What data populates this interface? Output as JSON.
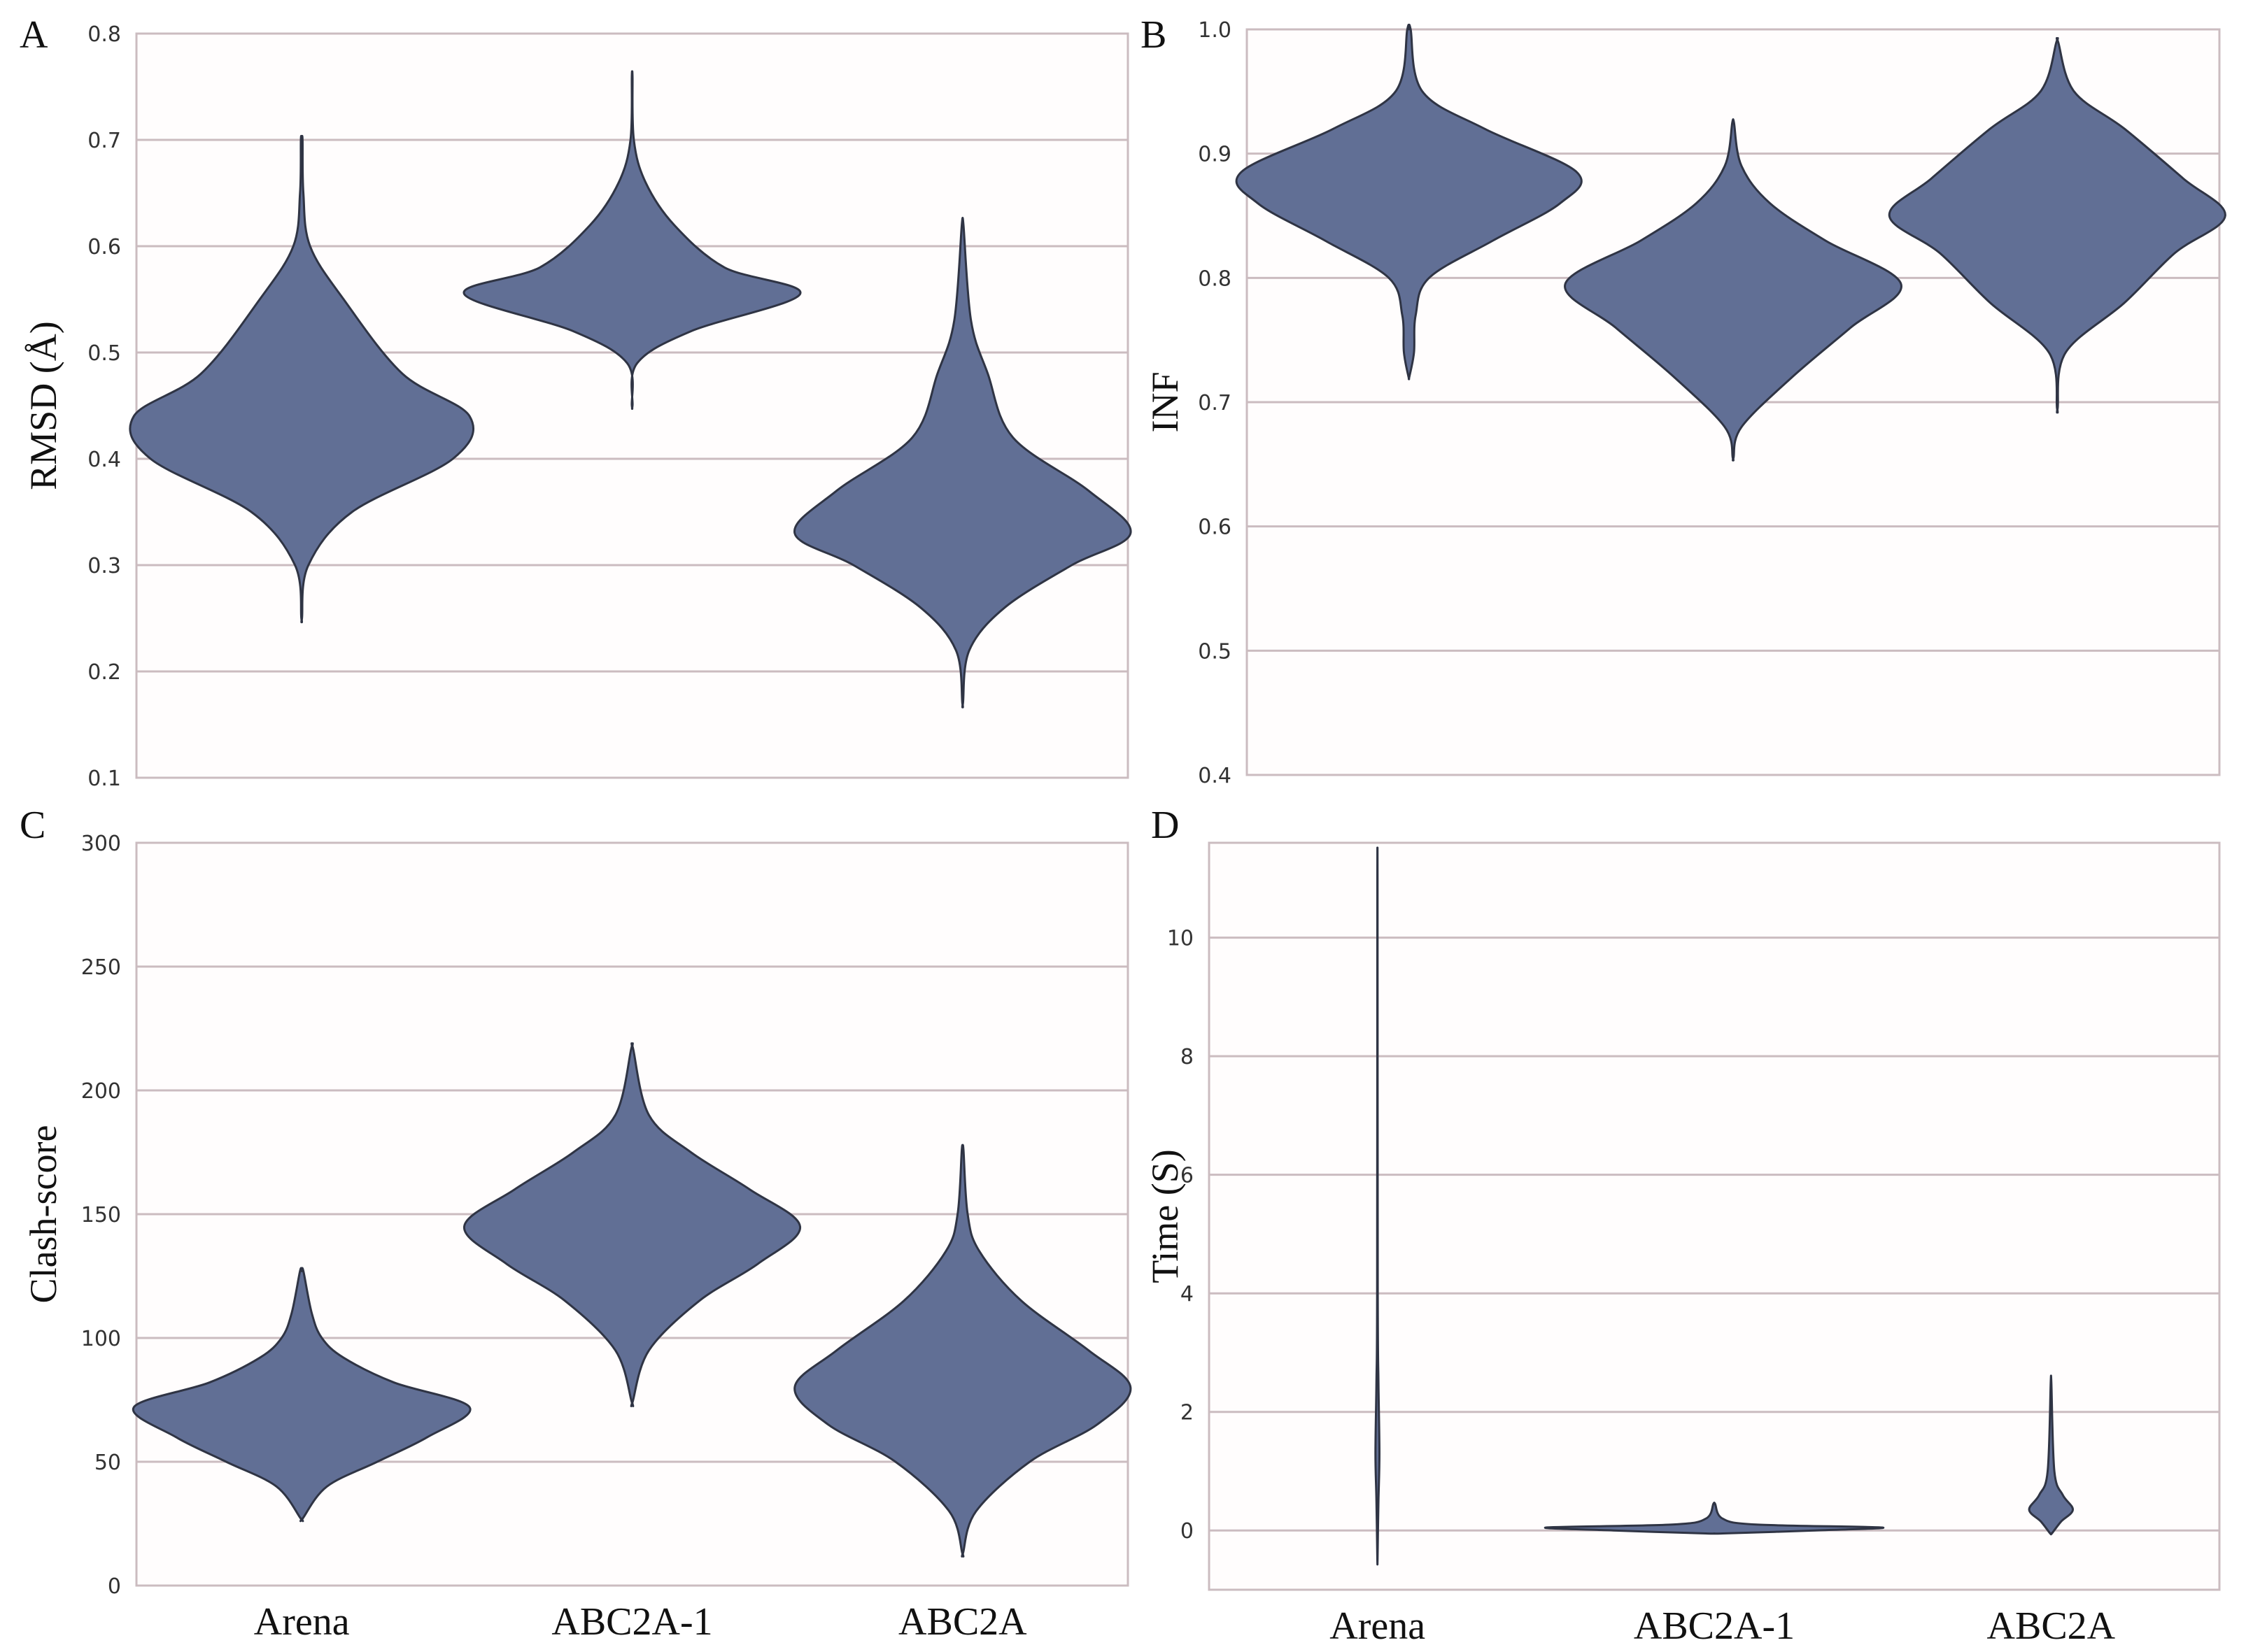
{
  "figure": {
    "violin_color": "#616f95",
    "violin_edge_color": "#2f3444",
    "grid_color": "#cbbcc0"
  },
  "chart_data": [
    {
      "type": "violin",
      "panel": "A",
      "title": "",
      "ylabel": "RMSD (Å)",
      "xlabel": "",
      "categories": [],
      "yticks": [
        "0.1",
        "0.2",
        "0.3",
        "0.4",
        "0.5",
        "0.6",
        "0.7",
        "0.8"
      ],
      "ylim": [
        0.1,
        0.8
      ],
      "grid": "horizontal",
      "series": [
        {
          "category": "Arena",
          "min": 0.25,
          "max": 0.7,
          "profile": [
            [
              0.25,
              0.002
            ],
            [
              0.3,
              0.04
            ],
            [
              0.35,
              0.3
            ],
            [
              0.4,
              0.9
            ],
            [
              0.44,
              1.0
            ],
            [
              0.48,
              0.6
            ],
            [
              0.55,
              0.25
            ],
            [
              0.6,
              0.05
            ],
            [
              0.65,
              0.01
            ],
            [
              0.7,
              0.005
            ]
          ]
        },
        {
          "category": "ABC2A-1",
          "min": 0.45,
          "max": 0.76,
          "profile": [
            [
              0.45,
              0.002
            ],
            [
              0.49,
              0.03
            ],
            [
              0.52,
              0.35
            ],
            [
              0.555,
              1.0
            ],
            [
              0.58,
              0.55
            ],
            [
              0.62,
              0.25
            ],
            [
              0.66,
              0.08
            ],
            [
              0.7,
              0.01
            ],
            [
              0.76,
              0.002
            ]
          ]
        },
        {
          "category": "ABC2A",
          "min": 0.17,
          "max": 0.62,
          "profile": [
            [
              0.17,
              0.002
            ],
            [
              0.22,
              0.04
            ],
            [
              0.26,
              0.25
            ],
            [
              0.3,
              0.65
            ],
            [
              0.33,
              1.0
            ],
            [
              0.37,
              0.75
            ],
            [
              0.42,
              0.3
            ],
            [
              0.48,
              0.15
            ],
            [
              0.53,
              0.05
            ],
            [
              0.62,
              0.005
            ]
          ]
        }
      ]
    },
    {
      "type": "violin",
      "panel": "B",
      "title": "",
      "ylabel": "INF",
      "xlabel": "",
      "categories": [],
      "yticks": [
        "0.4",
        "0.5",
        "0.6",
        "0.7",
        "0.8",
        "0.9",
        "1.0"
      ],
      "ylim": [
        0.4,
        1.0
      ],
      "grid": "horizontal",
      "series": [
        {
          "category": "Arena",
          "min": 0.72,
          "max": 1.0,
          "profile": [
            [
              0.72,
              0.002
            ],
            [
              0.74,
              0.03
            ],
            [
              0.77,
              0.04
            ],
            [
              0.8,
              0.12
            ],
            [
              0.83,
              0.5
            ],
            [
              0.86,
              0.9
            ],
            [
              0.885,
              1.0
            ],
            [
              0.92,
              0.45
            ],
            [
              0.95,
              0.08
            ],
            [
              1.0,
              0.01
            ]
          ]
        },
        {
          "category": "ABC2A-1",
          "min": 0.655,
          "max": 0.925,
          "profile": [
            [
              0.655,
              0.002
            ],
            [
              0.68,
              0.05
            ],
            [
              0.72,
              0.35
            ],
            [
              0.76,
              0.7
            ],
            [
              0.795,
              1.0
            ],
            [
              0.83,
              0.55
            ],
            [
              0.86,
              0.22
            ],
            [
              0.89,
              0.05
            ],
            [
              0.925,
              0.005
            ]
          ]
        },
        {
          "category": "ABC2A",
          "min": 0.695,
          "max": 0.99,
          "profile": [
            [
              0.695,
              0.002
            ],
            [
              0.74,
              0.05
            ],
            [
              0.78,
              0.4
            ],
            [
              0.82,
              0.7
            ],
            [
              0.85,
              1.0
            ],
            [
              0.88,
              0.75
            ],
            [
              0.92,
              0.4
            ],
            [
              0.95,
              0.1
            ],
            [
              0.99,
              0.005
            ]
          ]
        }
      ]
    },
    {
      "type": "violin",
      "panel": "C",
      "title": "",
      "ylabel": "Clash-score",
      "xlabel": "",
      "categories": [
        "Arena",
        "ABC2A-1",
        "ABC2A"
      ],
      "yticks": [
        "0",
        "50",
        "100",
        "150",
        "200",
        "250",
        "300"
      ],
      "ylim": [
        0,
        300
      ],
      "grid": "horizontal",
      "series": [
        {
          "category": "Arena",
          "min": 27,
          "max": 127,
          "profile": [
            [
              27,
              0.005
            ],
            [
              40,
              0.15
            ],
            [
              50,
              0.45
            ],
            [
              60,
              0.75
            ],
            [
              72,
              1.0
            ],
            [
              82,
              0.55
            ],
            [
              92,
              0.25
            ],
            [
              100,
              0.12
            ],
            [
              110,
              0.06
            ],
            [
              127,
              0.01
            ]
          ]
        },
        {
          "category": "ABC2A-1",
          "min": 74,
          "max": 217,
          "profile": [
            [
              74,
              0.002
            ],
            [
              95,
              0.1
            ],
            [
              115,
              0.4
            ],
            [
              130,
              0.75
            ],
            [
              145,
              1.0
            ],
            [
              160,
              0.7
            ],
            [
              175,
              0.35
            ],
            [
              190,
              0.1
            ],
            [
              217,
              0.005
            ]
          ]
        },
        {
          "category": "ABC2A",
          "min": 13,
          "max": 176,
          "profile": [
            [
              13,
              0.002
            ],
            [
              30,
              0.08
            ],
            [
              50,
              0.4
            ],
            [
              65,
              0.8
            ],
            [
              80,
              1.0
            ],
            [
              95,
              0.75
            ],
            [
              115,
              0.35
            ],
            [
              135,
              0.1
            ],
            [
              150,
              0.03
            ],
            [
              176,
              0.005
            ]
          ]
        }
      ]
    },
    {
      "type": "violin",
      "panel": "D",
      "title": "",
      "ylabel": "Time (S)",
      "xlabel": "",
      "categories": [
        "Arena",
        "ABC2A-1",
        "ABC2A"
      ],
      "yticks": [
        "0",
        "2",
        "4",
        "6",
        "8",
        "10"
      ],
      "ylim": [
        -1.0,
        11.6
      ],
      "grid": "horizontal",
      "series": [
        {
          "category": "Arena",
          "min": -0.5,
          "max": 11.0,
          "profile": [
            [
              -0.5,
              0.0005
            ],
            [
              0.5,
              0.006
            ],
            [
              1.3,
              0.012
            ],
            [
              2.5,
              0.006
            ],
            [
              4,
              0.002
            ],
            [
              11.0,
              0.0005
            ]
          ]
        },
        {
          "category": "ABC2A-1",
          "min": -0.05,
          "max": 0.45,
          "profile": [
            [
              -0.05,
              0.05
            ],
            [
              0.0,
              0.6
            ],
            [
              0.05,
              1.0
            ],
            [
              0.1,
              0.25
            ],
            [
              0.2,
              0.05
            ],
            [
              0.45,
              0.005
            ]
          ]
        },
        {
          "category": "ABC2A",
          "min": -0.05,
          "max": 2.5,
          "profile": [
            [
              -0.05,
              0.005
            ],
            [
              0.15,
              0.06
            ],
            [
              0.35,
              0.13
            ],
            [
              0.6,
              0.07
            ],
            [
              1.0,
              0.02
            ],
            [
              2.5,
              0.002
            ]
          ]
        }
      ]
    }
  ]
}
